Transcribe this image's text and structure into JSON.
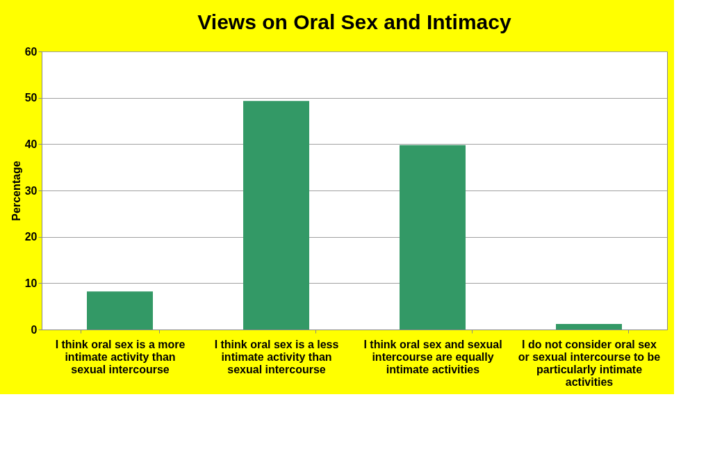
{
  "chart_data": {
    "type": "bar",
    "title": "Views on Oral Sex and Intimacy",
    "ylabel": "Percentage",
    "categories": [
      "I think oral sex is a more intimate activity than sexual intercourse",
      "I think oral sex is a less intimate activity than sexual intercourse",
      "I think oral sex and sexual intercourse are equally intimate activities",
      "I do not consider oral sex or sexual intercourse to be particularly intimate activities"
    ],
    "values": [
      8.2,
      49.3,
      39.8,
      1.2
    ],
    "color": "#339966",
    "ylim": [
      0,
      60
    ],
    "yticks": [
      0,
      10,
      20,
      30,
      40,
      50,
      60
    ],
    "grid": "y"
  }
}
